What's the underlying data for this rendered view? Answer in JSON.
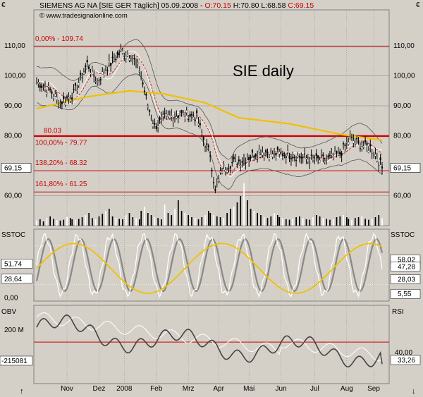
{
  "window": {
    "corner_icon_left": "€",
    "corner_icon_right": "€",
    "header_title": "SIEMENS AG NA [SIE GER  Täglich] 05.09.2008 -",
    "ohlc": [
      {
        "label": "O:70.15",
        "color": "#cc0000"
      },
      {
        "label": "H:70.80",
        "color": "#000000"
      },
      {
        "label": "L:68.58",
        "color": "#000000"
      },
      {
        "label": "C:69.15",
        "color": "#cc0000"
      }
    ],
    "copyright": "© www.tradesignalonline.com",
    "watermark": "SIE daily"
  },
  "colors": {
    "background": "#d4d0c8",
    "grid": "#808080",
    "fib": "#cc0000",
    "sma200": "#f0c000",
    "bollinger": "#555555",
    "price": "#000000",
    "white_line": "#ffffff",
    "stoch_fast": "#ffffff",
    "stoch_slow": "#888888",
    "rsi": "#ffffff",
    "obv": "#444444"
  },
  "chart_data": [
    {
      "type": "line",
      "name": "price",
      "x_labels": [
        "Nov",
        "Dez",
        "2008",
        "Feb",
        "Mrz",
        "Apr",
        "Mai",
        "Jun",
        "Jul",
        "Aug",
        "Sep"
      ],
      "y_ticks": [
        "110,00",
        "100,00",
        "90,00",
        "80,00",
        "60,00"
      ],
      "y_tick_values": [
        110,
        100,
        90,
        80,
        60
      ],
      "ylim": [
        50,
        122
      ],
      "current_value_label": "69,15",
      "current_value": 69.15,
      "levels": [
        {
          "label": "0,00% - 109.74",
          "value": 109.74
        },
        {
          "label": "80.03",
          "value": 80.03
        },
        {
          "label": "100,00% - 79.77",
          "value": 79.77
        },
        {
          "label": "138,20% - 68.32",
          "value": 68.32
        },
        {
          "label": "161,80% - 61.25",
          "value": 61.25
        }
      ],
      "anchors": [
        [
          0,
          98
        ],
        [
          8,
          95
        ],
        [
          14,
          91
        ],
        [
          22,
          94
        ],
        [
          30,
          104
        ],
        [
          36,
          98
        ],
        [
          42,
          103
        ],
        [
          50,
          108
        ],
        [
          56,
          107
        ],
        [
          61,
          102
        ],
        [
          66,
          90
        ],
        [
          70,
          83
        ],
        [
          76,
          86
        ],
        [
          84,
          87
        ],
        [
          90,
          87
        ],
        [
          95,
          86
        ],
        [
          100,
          77
        ],
        [
          103,
          74
        ],
        [
          106,
          61
        ],
        [
          110,
          69
        ],
        [
          116,
          71
        ],
        [
          124,
          72
        ],
        [
          132,
          75
        ],
        [
          140,
          74
        ],
        [
          148,
          74
        ],
        [
          156,
          73
        ],
        [
          164,
          72
        ],
        [
          172,
          72
        ],
        [
          180,
          74
        ],
        [
          186,
          79
        ],
        [
          192,
          77
        ],
        [
          198,
          76
        ],
        [
          202,
          73
        ],
        [
          205,
          69.15
        ]
      ],
      "sma200_anchors": [
        [
          0,
          89
        ],
        [
          30,
          93
        ],
        [
          55,
          95
        ],
        [
          75,
          94
        ],
        [
          100,
          91
        ],
        [
          120,
          86
        ],
        [
          150,
          84
        ],
        [
          180,
          80.5
        ],
        [
          205,
          78.5
        ]
      ]
    },
    {
      "type": "bar",
      "name": "volume",
      "description": "daily trading volume, relative heights",
      "values": [
        0.12,
        0.15,
        0.1,
        0.18,
        0.22,
        0.16,
        0.13,
        0.12,
        0.14,
        0.2,
        0.18,
        0.15,
        0.14,
        0.16,
        0.2,
        0.25,
        0.3,
        0.18,
        0.15,
        0.22,
        0.28,
        0.35,
        0.4,
        0.22,
        0.18,
        0.16,
        0.15,
        0.25,
        0.3,
        0.2,
        0.18,
        0.15,
        0.35,
        0.45,
        0.3,
        0.25,
        0.2,
        0.18,
        0.15,
        0.5,
        0.3,
        0.25,
        0.4,
        0.6,
        0.35,
        0.3,
        0.25,
        0.2,
        0.18,
        0.15,
        0.2,
        0.25,
        0.35,
        0.3,
        0.25,
        0.22,
        0.2,
        0.18,
        0.3,
        0.4,
        0.45,
        0.55,
        0.7,
        1.0,
        0.6,
        0.4,
        0.35,
        0.3,
        0.25,
        0.2,
        0.18,
        0.22,
        0.3,
        0.25,
        0.2,
        0.18,
        0.15,
        0.14,
        0.16,
        0.2,
        0.22,
        0.18,
        0.15,
        0.14,
        0.2,
        0.25,
        0.22,
        0.18,
        0.16,
        0.14,
        0.15,
        0.2,
        0.22,
        0.25,
        0.2,
        0.16,
        0.14,
        0.18,
        0.2,
        0.22,
        0.16,
        0.14,
        0.15,
        0.2,
        0.25,
        0.18
      ]
    },
    {
      "type": "line",
      "name": "SSTOC",
      "label_left": "SSTOC",
      "label_right": "SSTOC",
      "y_ticks_left": [
        "51,74",
        "28,64",
        "0,00"
      ],
      "y_ticks_right": [
        "58,02",
        "47,28",
        "28,03",
        "5,55"
      ],
      "ylim": [
        -5,
        105
      ]
    },
    {
      "type": "line",
      "name": "OBV_RSI",
      "label_left": "OBV",
      "label_right": "RSI",
      "y_ticks_left": [
        "200 M",
        "-215081"
      ],
      "y_ticks_right": [
        "40,00",
        "33,26"
      ],
      "rsi_level_label": "40,00",
      "rsi_current_label": "33,26"
    }
  ]
}
